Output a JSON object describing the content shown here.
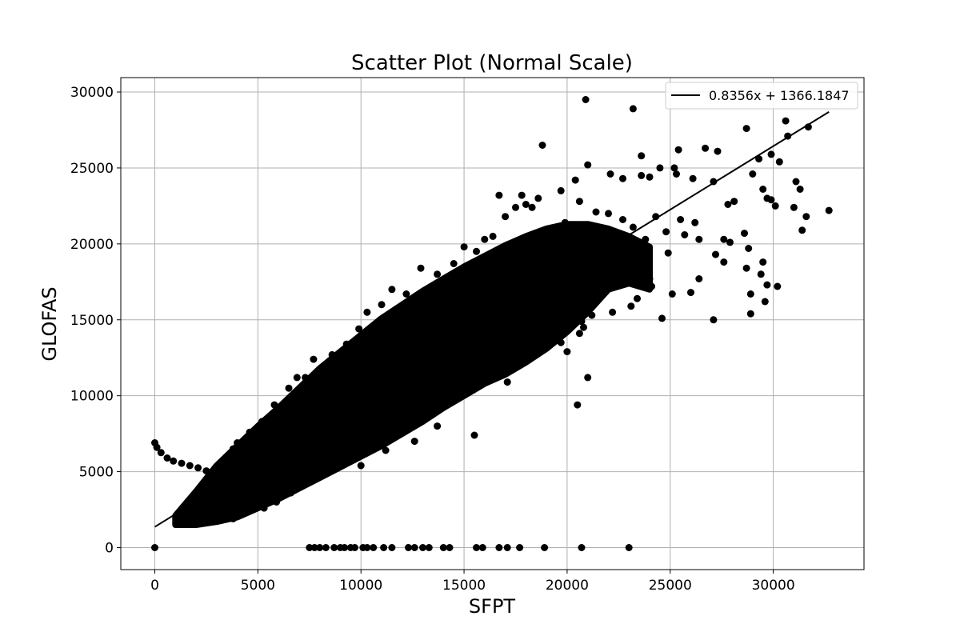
{
  "chart_data": {
    "type": "scatter",
    "title": "Scatter Plot (Normal Scale)",
    "xlabel": "SFPT",
    "ylabel": "GLOFAS",
    "xlim": [
      -1650,
      34400
    ],
    "ylim": [
      -1450,
      30950
    ],
    "xticks": [
      0,
      5000,
      10000,
      15000,
      20000,
      25000,
      30000
    ],
    "yticks": [
      0,
      5000,
      10000,
      15000,
      20000,
      25000,
      30000
    ],
    "grid": true,
    "marker_color": "#000000",
    "legend": {
      "placement": "top-right",
      "entries": [
        "0.8356x + 1366.1847"
      ]
    },
    "fit_line": {
      "slope": 0.8356,
      "intercept": 1366.1847,
      "x_range": [
        0,
        32700
      ],
      "color": "#000000"
    },
    "series": [
      {
        "points": [
          [
            0,
            0
          ],
          [
            7500,
            0
          ],
          [
            7750,
            0
          ],
          [
            8000,
            0
          ],
          [
            8300,
            0
          ],
          [
            8700,
            0
          ],
          [
            9000,
            0
          ],
          [
            9200,
            0
          ],
          [
            9500,
            0
          ],
          [
            9700,
            0
          ],
          [
            10100,
            0
          ],
          [
            10300,
            0
          ],
          [
            10600,
            0
          ],
          [
            11100,
            0
          ],
          [
            11500,
            0
          ],
          [
            12300,
            0
          ],
          [
            12600,
            0
          ],
          [
            13000,
            0
          ],
          [
            13300,
            0
          ],
          [
            14000,
            0
          ],
          [
            14300,
            0
          ],
          [
            15600,
            0
          ],
          [
            15900,
            0
          ],
          [
            16700,
            0
          ],
          [
            17100,
            0
          ],
          [
            17700,
            0
          ],
          [
            18900,
            0
          ],
          [
            20700,
            0
          ],
          [
            23000,
            0
          ],
          [
            0,
            6900
          ],
          [
            100,
            6600
          ],
          [
            300,
            6250
          ],
          [
            600,
            5900
          ],
          [
            900,
            5700
          ],
          [
            1300,
            5550
          ],
          [
            1700,
            5400
          ],
          [
            2100,
            5250
          ],
          [
            2500,
            5050
          ],
          [
            2800,
            4700
          ],
          [
            3100,
            4300
          ],
          [
            1100,
            1650
          ],
          [
            1300,
            1600
          ],
          [
            1500,
            1700
          ],
          [
            1700,
            1750
          ],
          [
            1900,
            1800
          ],
          [
            2100,
            2000
          ],
          [
            20900,
            29500
          ],
          [
            23200,
            28900
          ],
          [
            18800,
            26500
          ],
          [
            30600,
            28100
          ],
          [
            31700,
            27700
          ],
          [
            28700,
            27600
          ],
          [
            26700,
            26300
          ],
          [
            27300,
            26100
          ],
          [
            25400,
            26200
          ],
          [
            30700,
            27100
          ],
          [
            29900,
            25900
          ],
          [
            29300,
            25600
          ],
          [
            30300,
            25400
          ],
          [
            23600,
            25800
          ],
          [
            20400,
            24200
          ],
          [
            21000,
            25200
          ],
          [
            24500,
            25000
          ],
          [
            25200,
            25000
          ],
          [
            22100,
            24600
          ],
          [
            22700,
            24300
          ],
          [
            23600,
            24500
          ],
          [
            24000,
            24400
          ],
          [
            25300,
            24600
          ],
          [
            26100,
            24300
          ],
          [
            27100,
            24100
          ],
          [
            29000,
            24600
          ],
          [
            31100,
            24100
          ],
          [
            31300,
            23600
          ],
          [
            29500,
            23600
          ],
          [
            29700,
            23000
          ],
          [
            30100,
            22500
          ],
          [
            31000,
            22400
          ],
          [
            32700,
            22200
          ],
          [
            31600,
            21800
          ],
          [
            31400,
            20900
          ],
          [
            29900,
            22900
          ],
          [
            28100,
            22800
          ],
          [
            27800,
            22600
          ],
          [
            28600,
            20700
          ],
          [
            28800,
            19700
          ],
          [
            27600,
            20300
          ],
          [
            27900,
            20100
          ],
          [
            26200,
            21400
          ],
          [
            25700,
            20600
          ],
          [
            26400,
            20300
          ],
          [
            27200,
            19300
          ],
          [
            27600,
            18800
          ],
          [
            28700,
            18400
          ],
          [
            29500,
            18800
          ],
          [
            29400,
            18000
          ],
          [
            29700,
            17300
          ],
          [
            30200,
            17200
          ],
          [
            29600,
            16200
          ],
          [
            28900,
            16700
          ],
          [
            28900,
            15400
          ],
          [
            27100,
            15000
          ],
          [
            24600,
            15100
          ],
          [
            26400,
            17700
          ],
          [
            26000,
            16800
          ],
          [
            25100,
            16700
          ],
          [
            24100,
            17200
          ],
          [
            23100,
            15900
          ],
          [
            23400,
            16400
          ],
          [
            22200,
            15500
          ],
          [
            21200,
            16800
          ],
          [
            20800,
            14500
          ],
          [
            21200,
            15300
          ],
          [
            20700,
            14900
          ],
          [
            20600,
            14100
          ],
          [
            19700,
            13500
          ],
          [
            20000,
            12900
          ],
          [
            21000,
            11200
          ],
          [
            20500,
            9400
          ],
          [
            15500,
            7400
          ],
          [
            16000,
            12500
          ],
          [
            17300,
            12100
          ],
          [
            16600,
            11300
          ],
          [
            17100,
            10900
          ],
          [
            13700,
            8000
          ],
          [
            12600,
            7000
          ],
          [
            11200,
            6400
          ],
          [
            9200,
            5900
          ],
          [
            8200,
            4900
          ],
          [
            7600,
            4500
          ],
          [
            10000,
            5400
          ],
          [
            5000,
            3000
          ],
          [
            5900,
            3000
          ],
          [
            6600,
            3600
          ],
          [
            5300,
            2600
          ],
          [
            4200,
            2200
          ],
          [
            3800,
            1900
          ],
          [
            3300,
            2400
          ],
          [
            7000,
            4200
          ],
          [
            8600,
            12700
          ],
          [
            7300,
            11200
          ],
          [
            6500,
            10500
          ],
          [
            5200,
            8300
          ],
          [
            4600,
            7600
          ],
          [
            3800,
            6500
          ],
          [
            3400,
            5800
          ],
          [
            4000,
            6900
          ],
          [
            5800,
            9400
          ],
          [
            6900,
            11200
          ],
          [
            7700,
            12400
          ],
          [
            9300,
            13400
          ],
          [
            9900,
            14400
          ],
          [
            10300,
            15500
          ],
          [
            11000,
            16000
          ],
          [
            11500,
            17000
          ],
          [
            12200,
            16700
          ],
          [
            12900,
            18400
          ],
          [
            13700,
            18000
          ],
          [
            14500,
            18700
          ],
          [
            15000,
            19800
          ],
          [
            15600,
            19500
          ],
          [
            16000,
            20300
          ],
          [
            16400,
            20500
          ],
          [
            17000,
            21800
          ],
          [
            17500,
            22400
          ],
          [
            18000,
            22600
          ],
          [
            18600,
            23000
          ],
          [
            16700,
            23200
          ],
          [
            17800,
            23200
          ],
          [
            18300,
            22400
          ],
          [
            19700,
            23500
          ],
          [
            19900,
            21400
          ],
          [
            20600,
            22800
          ],
          [
            21400,
            22100
          ],
          [
            22000,
            22000
          ],
          [
            22700,
            21600
          ],
          [
            23200,
            21100
          ],
          [
            24300,
            21800
          ],
          [
            24800,
            20800
          ],
          [
            25500,
            21600
          ],
          [
            23800,
            20300
          ],
          [
            24900,
            19400
          ],
          [
            23900,
            18700
          ],
          [
            22800,
            18400
          ],
          [
            21700,
            18100
          ],
          [
            22300,
            17400
          ],
          [
            21600,
            16800
          ],
          [
            20200,
            17200
          ],
          [
            19300,
            16300
          ],
          [
            18400,
            15600
          ],
          [
            19000,
            14300
          ],
          [
            18100,
            13200
          ],
          [
            17200,
            13700
          ],
          [
            16400,
            12800
          ],
          [
            15300,
            12300
          ],
          [
            14400,
            11700
          ],
          [
            13500,
            10800
          ],
          [
            12600,
            9800
          ],
          [
            11800,
            9500
          ],
          [
            11000,
            8900
          ],
          [
            10400,
            8100
          ],
          [
            9600,
            7300
          ],
          [
            8700,
            6800
          ],
          [
            7900,
            6000
          ],
          [
            7300,
            5500
          ],
          [
            6600,
            5000
          ],
          [
            5900,
            4500
          ],
          [
            5200,
            4000
          ],
          [
            4600,
            3500
          ],
          [
            3900,
            3100
          ],
          [
            3300,
            2700
          ],
          [
            2700,
            2300
          ],
          [
            2300,
            1900
          ],
          [
            1900,
            1700
          ],
          [
            1500,
            1900
          ],
          [
            2000,
            2600
          ],
          [
            2600,
            3300
          ],
          [
            3000,
            4100
          ],
          [
            3600,
            4900
          ],
          [
            4200,
            5600
          ],
          [
            4900,
            6400
          ],
          [
            5500,
            7200
          ],
          [
            6100,
            7900
          ],
          [
            6800,
            8700
          ],
          [
            7400,
            9500
          ],
          [
            8100,
            10200
          ],
          [
            8700,
            10900
          ],
          [
            9400,
            11600
          ],
          [
            10000,
            12400
          ],
          [
            10700,
            13100
          ],
          [
            11300,
            13900
          ],
          [
            12000,
            14600
          ],
          [
            12600,
            15300
          ],
          [
            13300,
            16000
          ],
          [
            13900,
            16600
          ],
          [
            14600,
            17300
          ],
          [
            15300,
            17900
          ],
          [
            15900,
            18500
          ],
          [
            16600,
            19100
          ],
          [
            17300,
            19600
          ],
          [
            17900,
            20100
          ],
          [
            18600,
            20500
          ],
          [
            19200,
            20800
          ],
          [
            19900,
            20900
          ],
          [
            20500,
            20700
          ],
          [
            21100,
            20400
          ],
          [
            21700,
            20000
          ],
          [
            22300,
            19500
          ],
          [
            22900,
            19000
          ],
          [
            23500,
            18400
          ],
          [
            24000,
            17700
          ],
          [
            21000,
            18900
          ],
          [
            20100,
            18300
          ],
          [
            19400,
            17700
          ],
          [
            18700,
            17000
          ],
          [
            18000,
            16300
          ],
          [
            17300,
            15600
          ],
          [
            16600,
            14900
          ],
          [
            15900,
            14200
          ],
          [
            15200,
            13500
          ],
          [
            14500,
            12800
          ],
          [
            13800,
            12100
          ],
          [
            13100,
            11400
          ],
          [
            12400,
            10700
          ],
          [
            11700,
            10000
          ],
          [
            11000,
            9300
          ],
          [
            10300,
            8600
          ],
          [
            9600,
            7900
          ],
          [
            8900,
            7200
          ],
          [
            8200,
            6500
          ],
          [
            7500,
            5800
          ],
          [
            6800,
            5100
          ],
          [
            6100,
            4400
          ],
          [
            5400,
            3800
          ]
        ]
      }
    ]
  }
}
